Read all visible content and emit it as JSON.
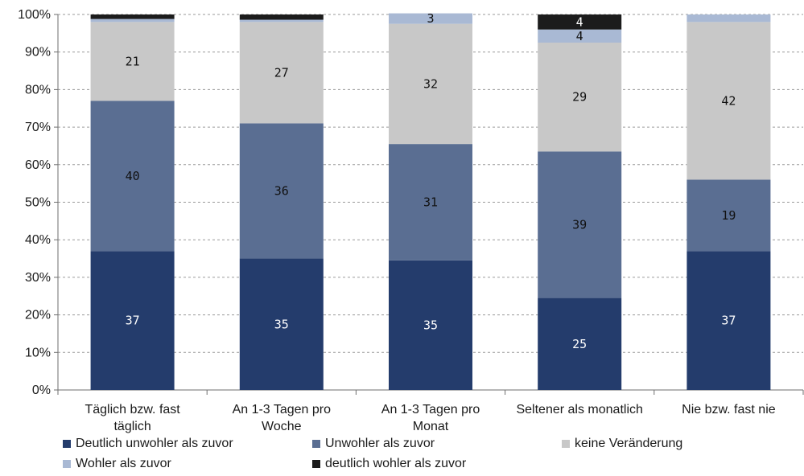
{
  "chart_data": {
    "type": "bar",
    "stacked": true,
    "categories": [
      [
        "Täglich bzw. fast",
        "täglich"
      ],
      [
        "An 1-3 Tagen pro",
        "Woche"
      ],
      [
        "An 1-3 Tagen pro",
        "Monat"
      ],
      [
        "Seltener als monatlich"
      ],
      [
        "Nie bzw. fast nie"
      ]
    ],
    "series": [
      {
        "name": "Deutlich unwohler als zuvor",
        "color": "#243c6c",
        "label_color": "#ffffff",
        "values": [
          37,
          35,
          34.5,
          24.5,
          37
        ],
        "labels": [
          "37",
          "35",
          "35",
          "25",
          "37"
        ]
      },
      {
        "name": "Unwohler als zuvor",
        "color": "#5a6e92",
        "label_color": "#111111",
        "values": [
          40,
          36,
          31,
          39,
          19
        ],
        "labels": [
          "40",
          "36",
          "31",
          "39",
          "19"
        ]
      },
      {
        "name": "keine Veränderung",
        "color": "#c8c8c8",
        "label_color": "#111111",
        "values": [
          21,
          27,
          32,
          29,
          42
        ],
        "labels": [
          "21",
          "27",
          "32",
          "29",
          "42"
        ]
      },
      {
        "name": "Wohler als zuvor",
        "color": "#a9b9d4",
        "label_color": "#111111",
        "values": [
          0.8,
          0.6,
          2.8,
          3.5,
          2
        ],
        "labels": [
          "",
          "",
          "3",
          "4",
          ""
        ]
      },
      {
        "name": "deutlich wohler als zuvor",
        "color": "#1c1c1c",
        "label_color": "#ffffff",
        "values": [
          1.2,
          1.4,
          0,
          4,
          0
        ],
        "labels": [
          "",
          "",
          "",
          "4",
          ""
        ]
      }
    ],
    "y_ticks": [
      "0%",
      "10%",
      "20%",
      "30%",
      "40%",
      "50%",
      "60%",
      "70%",
      "80%",
      "90%",
      "100%"
    ],
    "ylim": [
      0,
      100
    ],
    "grid": true,
    "legend_position": "bottom",
    "title": "",
    "xlabel": "",
    "ylabel": ""
  }
}
